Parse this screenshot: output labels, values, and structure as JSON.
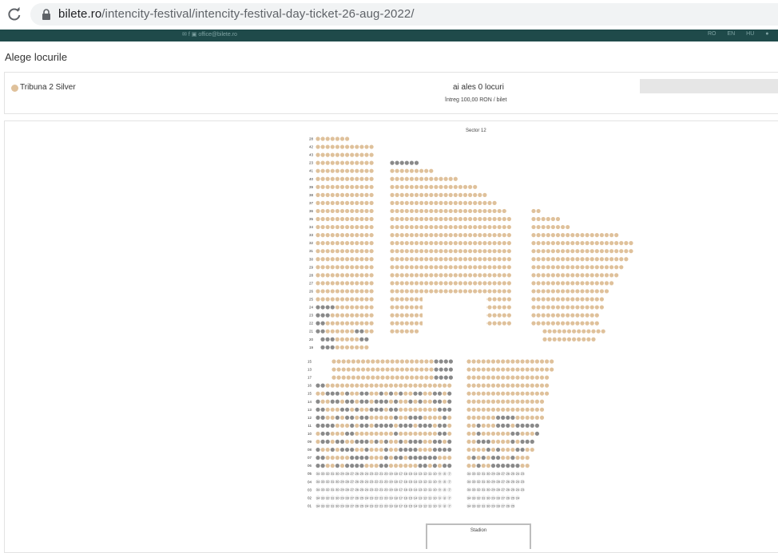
{
  "browser": {
    "url_host": "bilete.ro",
    "url_path": "/intencity-festival/intencity-festival-day-ticket-26-aug-2022/"
  },
  "topbar": {
    "contact": "office@bilete.ro",
    "languages": [
      "RO",
      "EN",
      "HU"
    ],
    "info": "info"
  },
  "page": {
    "title": "Alege locurile"
  },
  "ticket": {
    "category": "Tribuna 2 Silver",
    "selection": "ai ales 0 locuri",
    "price_line": "întreg 100,00 RON / bilet",
    "buy_button_label": ""
  },
  "seatmap": {
    "sector_title": "Sector 12",
    "stage_label": "Stadion",
    "upper_row_labels": [
      "28",
      "42",
      "43",
      "23",
      "41",
      "40",
      "39",
      "38",
      "37",
      "36",
      "35",
      "34",
      "33",
      "32",
      "31",
      "30",
      "29",
      "28",
      "27",
      "26",
      "25",
      "24",
      "23",
      "22",
      "21",
      "20",
      "19"
    ],
    "lower_row_labels": [
      "15",
      "13",
      "17",
      "16",
      "15",
      "14",
      "13",
      "12",
      "11",
      "10",
      "09",
      "08",
      "07",
      "06",
      "05",
      "04",
      "03",
      "02",
      "01"
    ],
    "colors": {
      "available": "#dfc19b",
      "sold": "#8a8a8a",
      "unavailable": "#ececec"
    }
  }
}
